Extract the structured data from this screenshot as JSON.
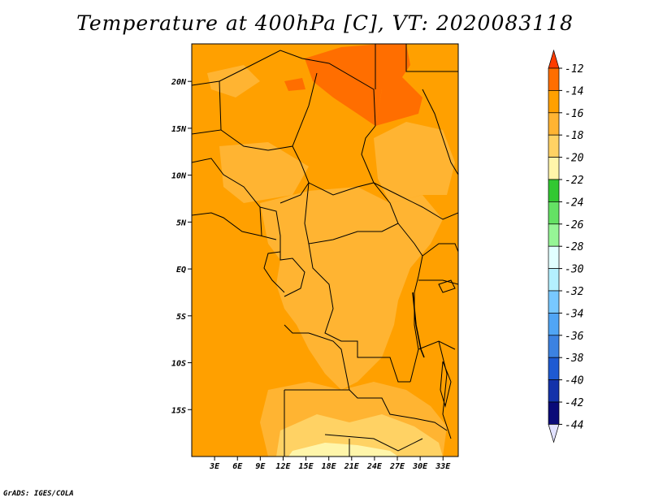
{
  "title": "Temperature at 400hPa [C], VT: 2020083118",
  "credit": "GrADS: IGES/COLA",
  "map": {
    "lon_range": [
      0,
      35
    ],
    "lat_range": [
      -20,
      24
    ],
    "lon_ticks": [
      {
        "value": 3,
        "label": "3E"
      },
      {
        "value": 6,
        "label": "6E"
      },
      {
        "value": 9,
        "label": "9E"
      },
      {
        "value": 12,
        "label": "12E"
      },
      {
        "value": 15,
        "label": "15E"
      },
      {
        "value": 18,
        "label": "18E"
      },
      {
        "value": 21,
        "label": "21E"
      },
      {
        "value": 24,
        "label": "24E"
      },
      {
        "value": 27,
        "label": "27E"
      },
      {
        "value": 30,
        "label": "30E"
      },
      {
        "value": 33,
        "label": "33E"
      }
    ],
    "lat_ticks": [
      {
        "value": 20,
        "label": "20N"
      },
      {
        "value": 15,
        "label": "15N"
      },
      {
        "value": 10,
        "label": "10N"
      },
      {
        "value": 5,
        "label": "5N"
      },
      {
        "value": 0,
        "label": "EQ"
      },
      {
        "value": -5,
        "label": "5S"
      },
      {
        "value": -10,
        "label": "10S"
      },
      {
        "value": -15,
        "label": "15S"
      }
    ]
  },
  "colorbar": {
    "labels": [
      "-12",
      "-14",
      "-16",
      "-18",
      "-20",
      "-22",
      "-24",
      "-26",
      "-28",
      "-30",
      "-32",
      "-34",
      "-36",
      "-38",
      "-40",
      "-42",
      "-44"
    ],
    "colors": [
      "#ff3c00",
      "#ff6e00",
      "#ffa000",
      "#ffb432",
      "#ffd264",
      "#fff5aa",
      "#32c832",
      "#64e164",
      "#96f596",
      "#e1ffff",
      "#b4f0ff",
      "#78c8ff",
      "#50a5f5",
      "#3c82e1",
      "#1e5ad2",
      "#1432aa",
      "#0a0a78",
      "#e1e1ff"
    ]
  },
  "colors": {
    "base_field": "#ffa000",
    "warm_patch": "#ff6e00",
    "mid_patch": "#ffb432",
    "cool_patch": "#ffd264",
    "coolest_patch": "#fff5aa"
  }
}
